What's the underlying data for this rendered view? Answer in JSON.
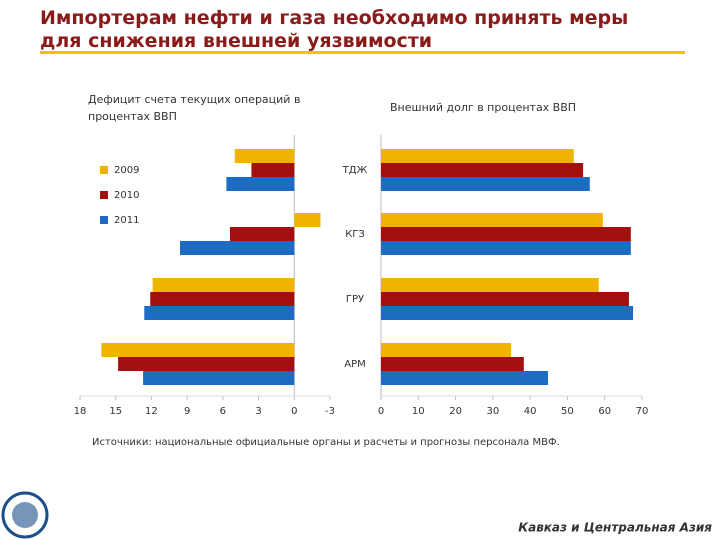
{
  "header": {
    "title": "Импортерам нефти и газа необходимо принять меры для снижения внешней уязвимости"
  },
  "chart_data": [
    {
      "type": "bar",
      "orientation": "horizontal",
      "title": "Дефицит счета текущих операций в процентах ВВП",
      "categories": [
        "ТДЖ",
        "КГЗ",
        "ГРУ",
        "АРМ"
      ],
      "series": [
        {
          "name": "2009",
          "color": "#f0b400",
          "values": [
            5.0,
            -2.2,
            11.9,
            16.2
          ]
        },
        {
          "name": "2010",
          "color": "#a30e0e",
          "values": [
            3.6,
            5.4,
            12.1,
            14.8
          ]
        },
        {
          "name": "2011",
          "color": "#1c6cc4",
          "values": [
            5.7,
            9.6,
            12.6,
            12.7
          ]
        }
      ],
      "xlim": [
        18,
        -3
      ],
      "xticks": [
        18,
        15,
        12,
        9,
        6,
        3,
        0,
        -3
      ]
    },
    {
      "type": "bar",
      "orientation": "horizontal",
      "title": "Внешний долг в процентах ВВП",
      "series": [
        {
          "color": "#f0b400",
          "values": [
            51.7,
            59.5,
            58.4,
            34.9
          ]
        },
        {
          "color": "#a30e0e",
          "values": [
            54.2,
            67,
            66.5,
            38.3
          ]
        },
        {
          "color": "#1c6cc4",
          "values": [
            56.0,
            67,
            67.6,
            44.8
          ]
        }
      ],
      "xlim": [
        0,
        70
      ],
      "xticks": [
        0,
        10,
        20,
        30,
        40,
        50,
        60,
        70
      ]
    }
  ],
  "footer": {
    "source": "Источники: национальные официальные органы и расчеты и прогнозы персонала МВФ.",
    "region": "Кавказ и Центральная Азия"
  }
}
